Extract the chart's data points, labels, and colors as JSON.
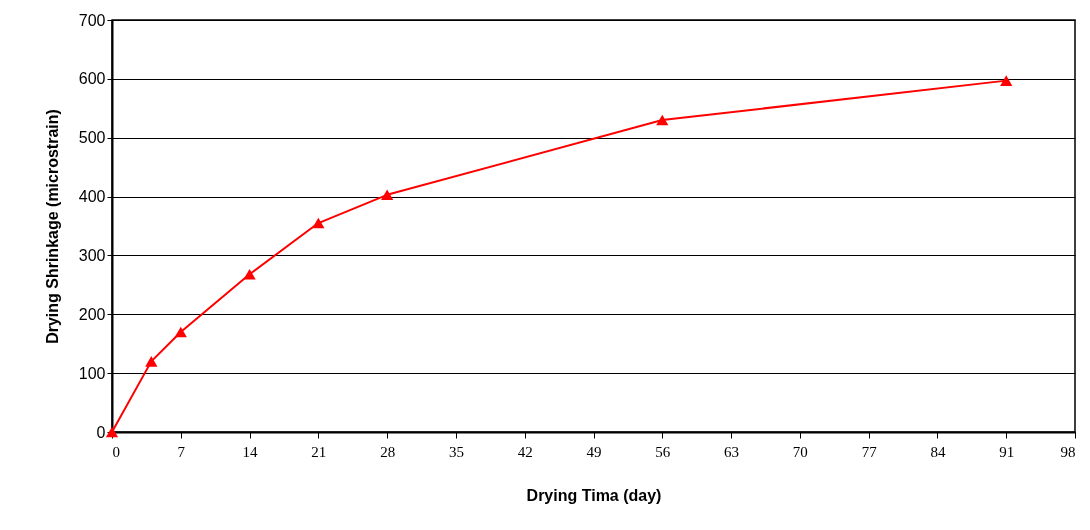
{
  "chart_data": {
    "type": "line",
    "xlabel": "Drying Tima (day)",
    "ylabel": "Drying Shrinkage (microstrain)",
    "x": [
      0,
      4,
      7,
      14,
      21,
      28,
      56,
      91
    ],
    "series": [
      {
        "color": "#ff0000",
        "values": [
          0,
          120,
          170,
          268,
          355,
          403,
          530,
          597
        ]
      }
    ],
    "xlim": [
      0,
      98
    ],
    "xticks": [
      0,
      7,
      14,
      21,
      28,
      35,
      42,
      49,
      56,
      63,
      70,
      77,
      84,
      91,
      98
    ],
    "ylim": [
      0,
      700
    ],
    "yticks": [
      0,
      100,
      200,
      300,
      400,
      500,
      600,
      700
    ],
    "grid": "y",
    "marker": "triangle",
    "line_style": "solid"
  }
}
